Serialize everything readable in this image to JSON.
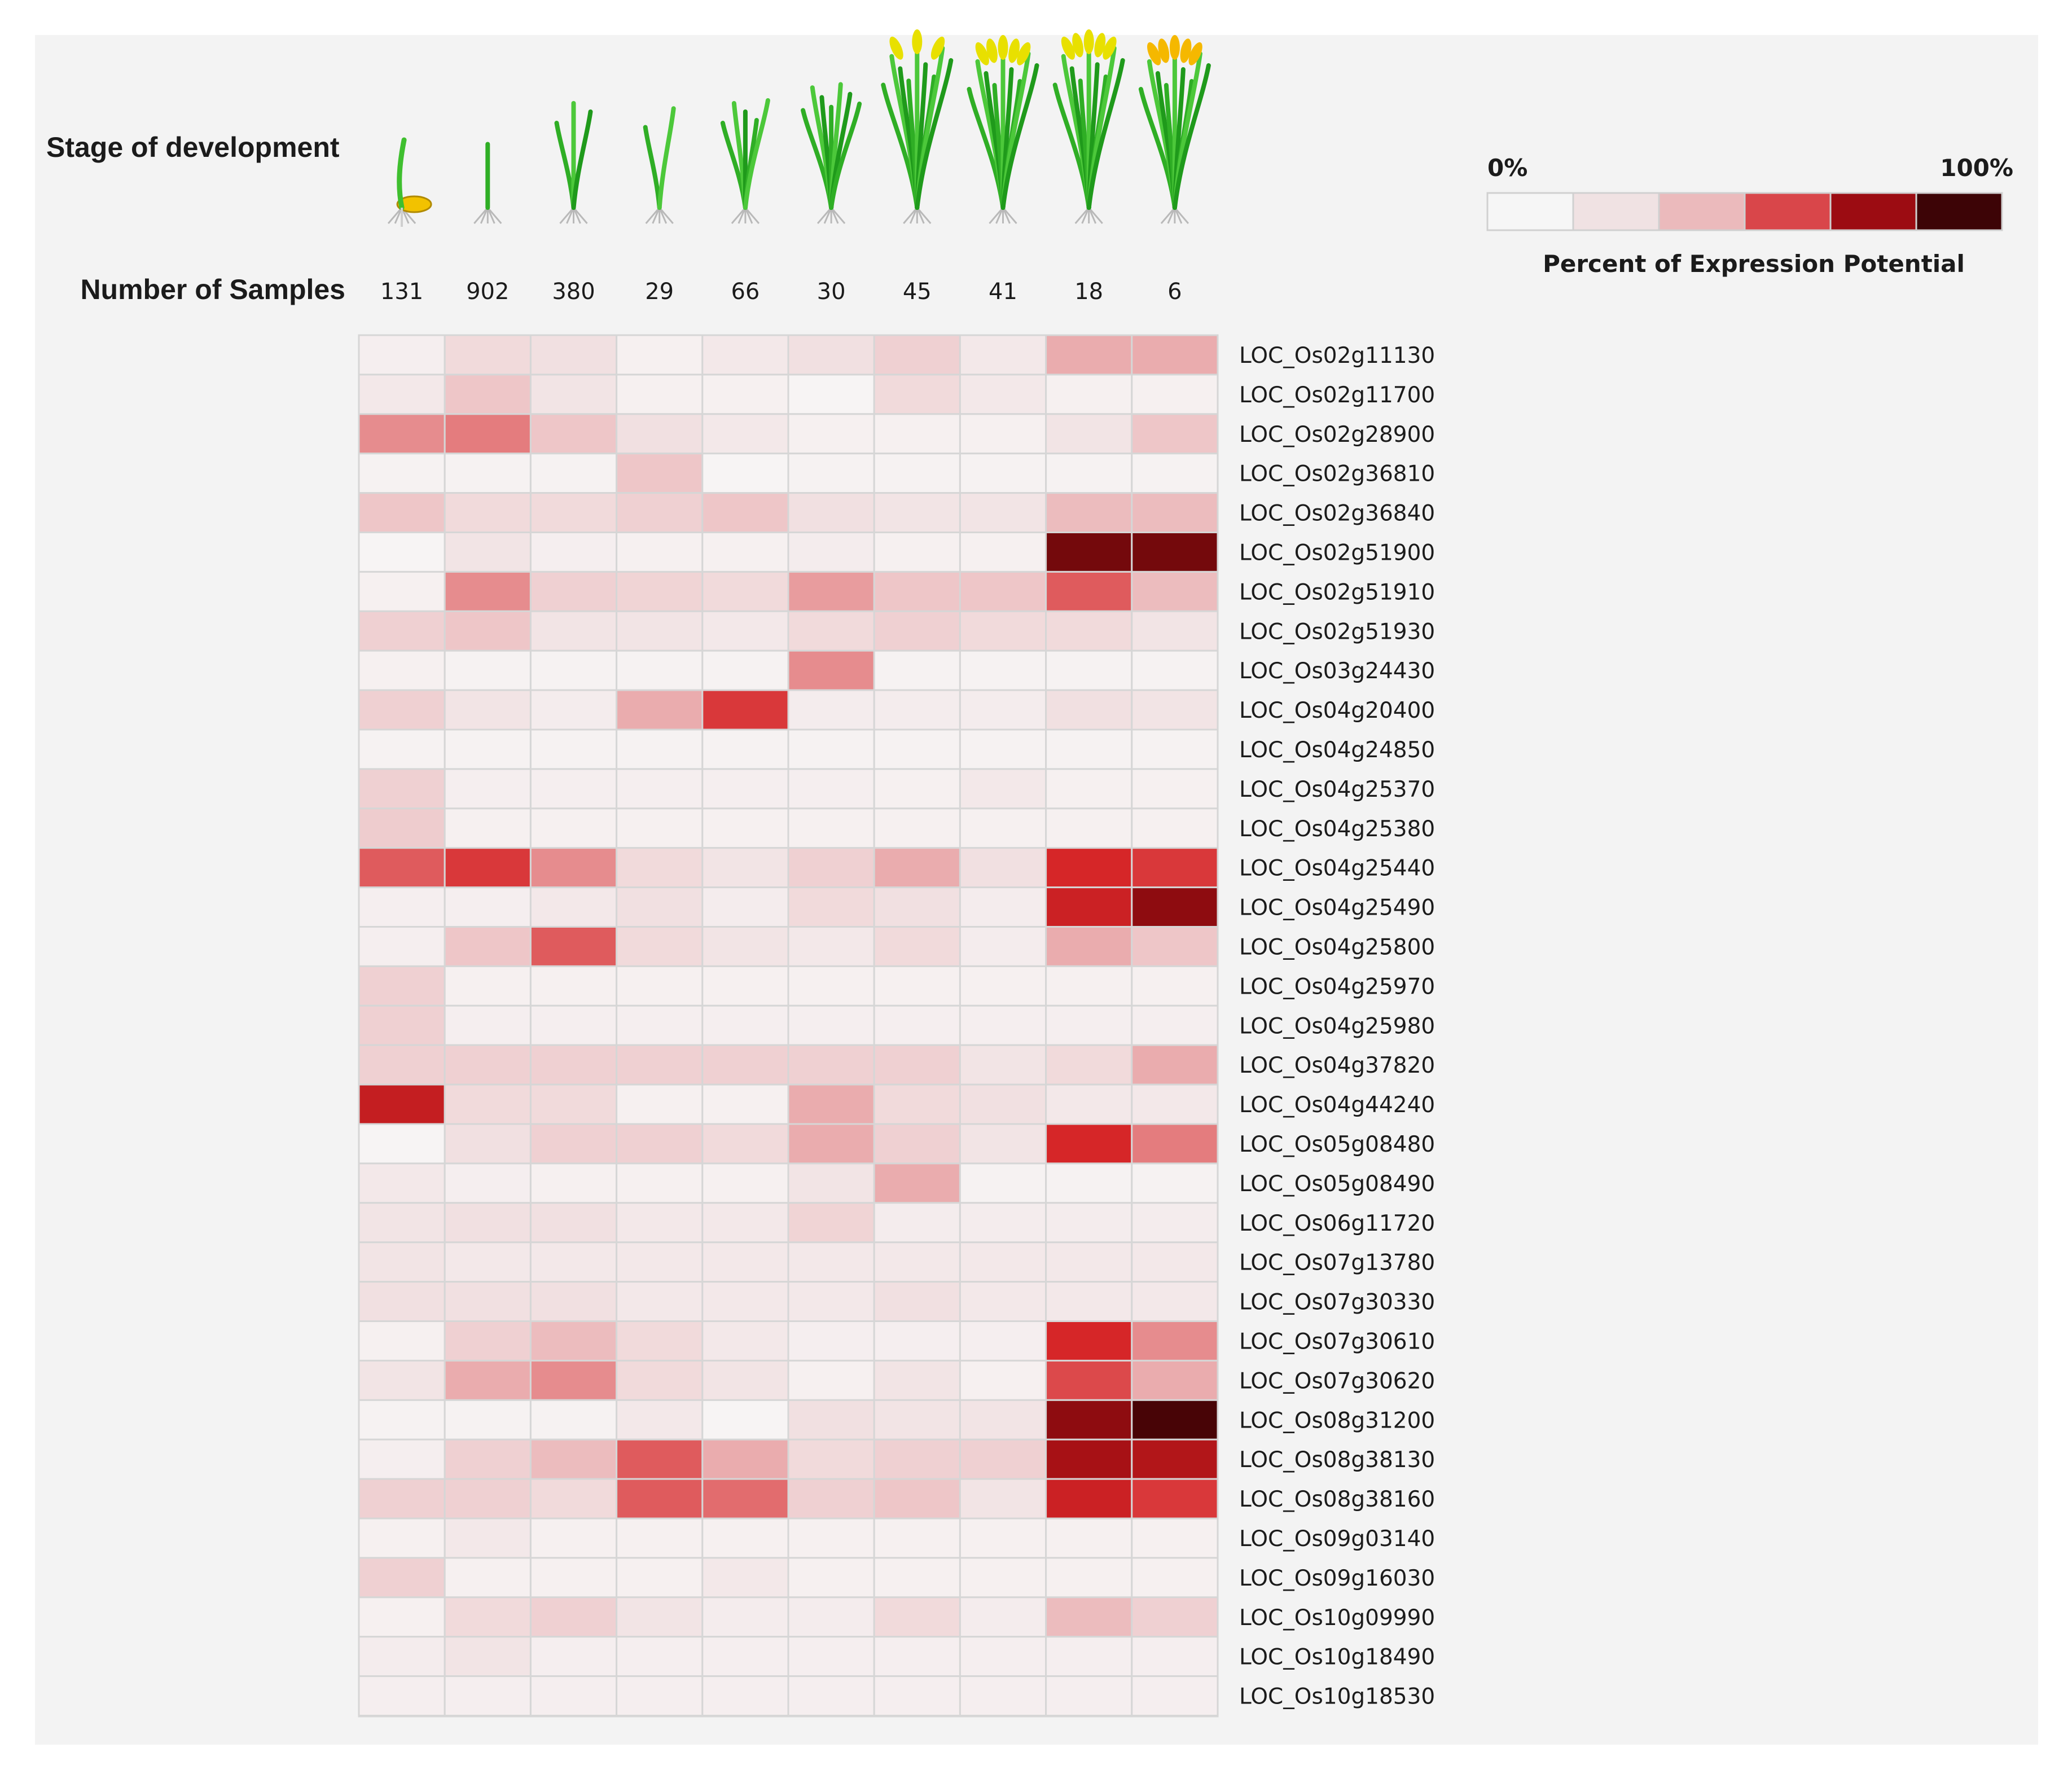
{
  "chart_data": {
    "type": "heatmap",
    "row_header_stage": "Stage of development",
    "row_header_samples": "Number of Samples",
    "stage_icons": [
      "germinating-seed-icon",
      "seedling-icon",
      "young-seedling-icon",
      "seedling-icon",
      "tillering-plant-icon",
      "stem-elongation-plant-icon",
      "booting-plant-icon",
      "heading-plant-icon",
      "flowering-plant-icon",
      "milk-stage-plant-icon"
    ],
    "sample_counts": [
      "131",
      "902",
      "380",
      "29",
      "66",
      "30",
      "45",
      "41",
      "18",
      "6"
    ],
    "genes": [
      "LOC_Os02g11130",
      "LOC_Os02g11700",
      "LOC_Os02g28900",
      "LOC_Os02g36810",
      "LOC_Os02g36840",
      "LOC_Os02g51900",
      "LOC_Os02g51910",
      "LOC_Os02g51930",
      "LOC_Os03g24430",
      "LOC_Os04g20400",
      "LOC_Os04g24850",
      "LOC_Os04g25370",
      "LOC_Os04g25380",
      "LOC_Os04g25440",
      "LOC_Os04g25490",
      "LOC_Os04g25800",
      "LOC_Os04g25970",
      "LOC_Os04g25980",
      "LOC_Os04g37820",
      "LOC_Os04g44240",
      "LOC_Os05g08480",
      "LOC_Os05g08490",
      "LOC_Os06g11720",
      "LOC_Os07g13780",
      "LOC_Os07g30330",
      "LOC_Os07g30610",
      "LOC_Os07g30620",
      "LOC_Os08g31200",
      "LOC_Os08g38130",
      "LOC_Os08g38160",
      "LOC_Os09g03140",
      "LOC_Os09g16030",
      "LOC_Os10g09990",
      "LOC_Os10g18490",
      "LOC_Os10g18530"
    ],
    "values": [
      [
        5,
        15,
        12,
        4,
        8,
        12,
        20,
        8,
        35,
        35
      ],
      [
        8,
        25,
        10,
        4,
        4,
        2,
        15,
        8,
        4,
        4
      ],
      [
        45,
        50,
        25,
        12,
        8,
        4,
        4,
        4,
        10,
        25
      ],
      [
        3,
        3,
        3,
        25,
        2,
        3,
        3,
        3,
        3,
        3
      ],
      [
        25,
        15,
        15,
        20,
        25,
        12,
        10,
        10,
        30,
        30
      ],
      [
        2,
        10,
        5,
        4,
        4,
        6,
        4,
        4,
        95,
        95
      ],
      [
        4,
        45,
        20,
        18,
        15,
        40,
        25,
        25,
        60,
        30
      ],
      [
        20,
        25,
        10,
        10,
        8,
        15,
        20,
        15,
        15,
        10
      ],
      [
        4,
        3,
        3,
        3,
        3,
        45,
        3,
        3,
        3,
        3
      ],
      [
        20,
        10,
        6,
        35,
        70,
        6,
        6,
        6,
        12,
        10
      ],
      [
        3,
        3,
        3,
        3,
        3,
        3,
        3,
        3,
        3,
        3
      ],
      [
        20,
        5,
        5,
        5,
        5,
        5,
        4,
        8,
        4,
        4
      ],
      [
        22,
        4,
        4,
        4,
        4,
        4,
        4,
        4,
        4,
        4
      ],
      [
        60,
        70,
        45,
        15,
        10,
        20,
        35,
        12,
        75,
        70
      ],
      [
        5,
        5,
        8,
        12,
        6,
        15,
        12,
        6,
        78,
        92
      ],
      [
        5,
        25,
        60,
        15,
        10,
        8,
        15,
        6,
        35,
        25
      ],
      [
        20,
        4,
        4,
        4,
        4,
        4,
        4,
        4,
        4,
        4
      ],
      [
        20,
        5,
        5,
        5,
        5,
        5,
        5,
        5,
        5,
        5
      ],
      [
        20,
        20,
        20,
        20,
        20,
        20,
        20,
        10,
        15,
        35
      ],
      [
        80,
        15,
        15,
        4,
        4,
        35,
        15,
        12,
        8,
        8
      ],
      [
        2,
        12,
        20,
        20,
        15,
        35,
        20,
        10,
        75,
        50
      ],
      [
        8,
        5,
        4,
        4,
        4,
        10,
        35,
        3,
        3,
        3
      ],
      [
        10,
        12,
        12,
        8,
        8,
        18,
        6,
        6,
        6,
        6
      ],
      [
        10,
        8,
        8,
        8,
        8,
        8,
        8,
        8,
        8,
        8
      ],
      [
        12,
        12,
        12,
        8,
        8,
        8,
        12,
        8,
        8,
        8
      ],
      [
        4,
        20,
        30,
        15,
        8,
        5,
        5,
        5,
        75,
        45
      ],
      [
        10,
        35,
        45,
        15,
        10,
        4,
        10,
        4,
        65,
        35
      ],
      [
        3,
        3,
        3,
        8,
        2,
        12,
        10,
        10,
        92,
        100
      ],
      [
        5,
        20,
        30,
        60,
        35,
        15,
        20,
        20,
        88,
        85
      ],
      [
        20,
        20,
        15,
        60,
        55,
        20,
        25,
        10,
        78,
        70
      ],
      [
        4,
        8,
        4,
        4,
        4,
        4,
        4,
        4,
        4,
        4
      ],
      [
        20,
        4,
        4,
        4,
        8,
        4,
        4,
        4,
        4,
        4
      ],
      [
        4,
        15,
        20,
        10,
        6,
        6,
        15,
        6,
        30,
        20
      ],
      [
        6,
        10,
        5,
        5,
        5,
        5,
        5,
        5,
        5,
        5
      ],
      [
        5,
        5,
        5,
        5,
        5,
        5,
        5,
        5,
        5,
        5
      ]
    ],
    "value_range": [
      0,
      100
    ],
    "legend": {
      "min_label": "0%",
      "max_label": "100%",
      "title": "Percent of Expression Potential",
      "colors": [
        "#f6f6f6",
        "#f0e2e3",
        "#ebbabc",
        "#d9464a",
        "#9c0c12",
        "#3d0406"
      ]
    }
  }
}
